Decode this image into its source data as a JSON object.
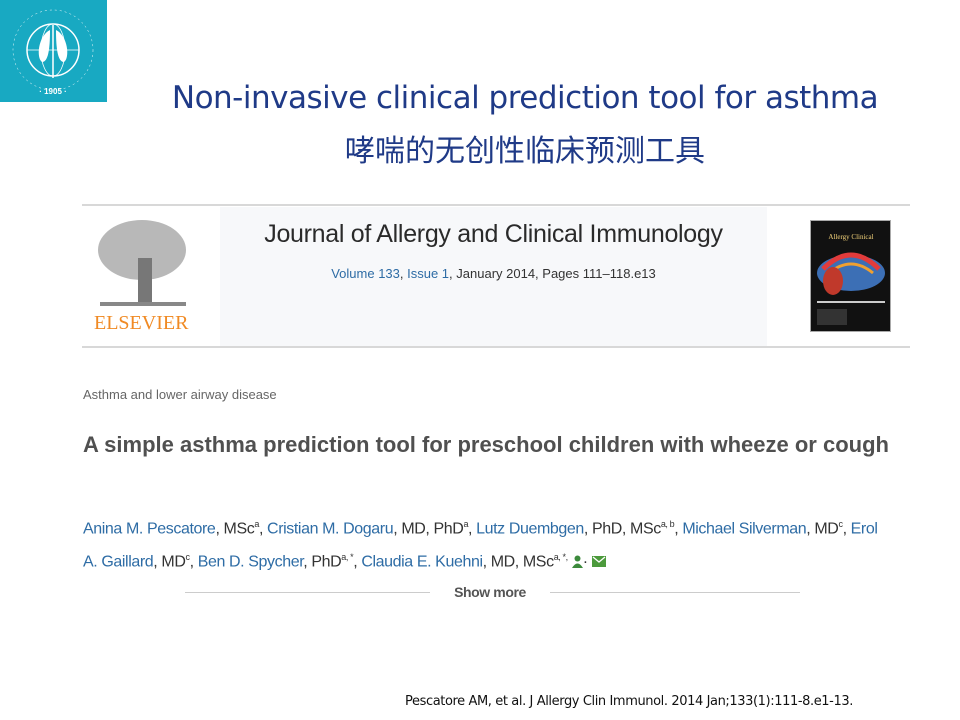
{
  "logo": {
    "text": "AMERICAN THORACIC SOCIETY",
    "year": "1905",
    "color": "#18a9c2"
  },
  "title_en": "Non-invasive clinical prediction tool for asthma",
  "title_zh": "哮喘的无创性临床预测工具",
  "journal": {
    "publisher": "ELSEVIER",
    "name": "Journal of Allergy and Clinical Immunology",
    "volume": "Volume 133",
    "issue": "Issue 1",
    "rest": ", January 2014, Pages 111–118.e13"
  },
  "article": {
    "category": "Asthma and lower airway disease",
    "title": "A simple asthma prediction tool for preschool children with wheeze or cough",
    "authors": [
      {
        "name": "Anina M. Pescatore",
        "deg": ", MSc",
        "sup": "a"
      },
      {
        "name": "Cristian M. Dogaru",
        "deg": ", MD, PhD",
        "sup": "a"
      },
      {
        "name": "Lutz Duembgen",
        "deg": ", PhD, MSc",
        "sup": "a, b"
      },
      {
        "name": "Michael Silverman",
        "deg": ", MD",
        "sup": "c"
      },
      {
        "name": "Erol A. Gaillard",
        "deg": ", MD",
        "sup": "c"
      },
      {
        "name": "Ben D. Spycher",
        "deg": ", PhD",
        "sup": "a, *"
      },
      {
        "name": "Claudia E. Kuehni",
        "deg": ", MD, MSc",
        "sup": "a, *,"
      }
    ],
    "show_more": "Show more"
  },
  "citation": "Pescatore AM, et al. J Allergy Clin Immunol. 2014 Jan;133(1):111-8.e1-13."
}
